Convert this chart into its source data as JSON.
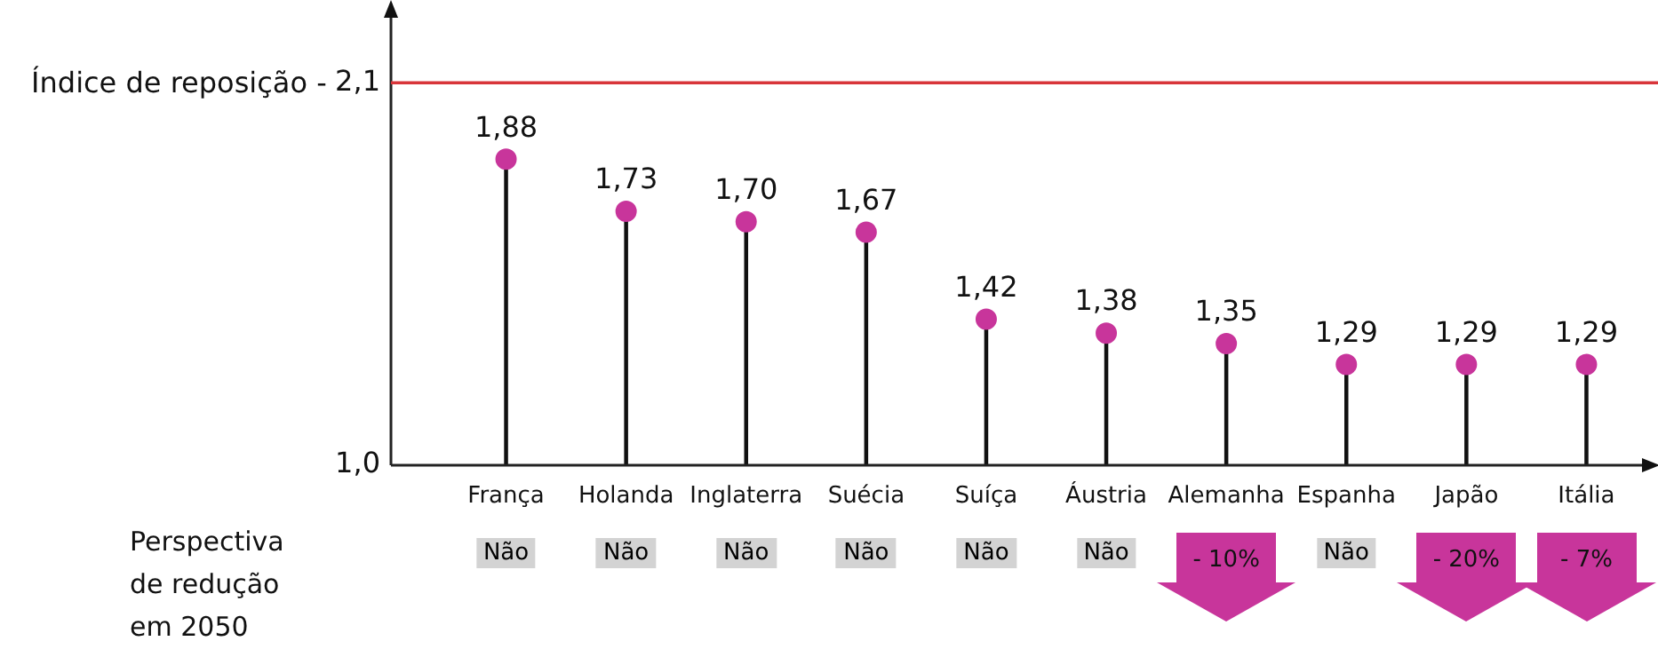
{
  "chart_data": {
    "type": "lollipop",
    "categories": [
      "França",
      "Holanda",
      "Inglaterra",
      "Suécia",
      "Suíça",
      "Áustria",
      "Alemanha",
      "Espanha",
      "Japão",
      "Itália"
    ],
    "values": [
      1.88,
      1.73,
      1.7,
      1.67,
      1.42,
      1.38,
      1.35,
      1.29,
      1.29,
      1.29
    ],
    "value_labels": [
      "1,88",
      "1,73",
      "1,70",
      "1,67",
      "1,42",
      "1,38",
      "1,35",
      "1,29",
      "1,29",
      "1,29"
    ],
    "color": "#c8359b",
    "ylim": [
      1.0,
      2.1
    ],
    "yticks": [
      {
        "value": 1.0,
        "label": "1,0"
      },
      {
        "value": 2.1,
        "label": "2,1"
      }
    ],
    "ref_lines": [
      {
        "axis": "y",
        "value": 2.1,
        "label": "Índice de reposição -",
        "color": "#d8353a"
      }
    ],
    "annotations": [
      "Perspectiva de redução em 2050",
      "Não",
      "Não",
      "Não",
      "Não",
      "Não",
      "Não",
      "- 10%",
      "Não",
      "- 20%",
      "- 7%"
    ],
    "grid": false,
    "legend": false,
    "marker": "circle"
  }
}
